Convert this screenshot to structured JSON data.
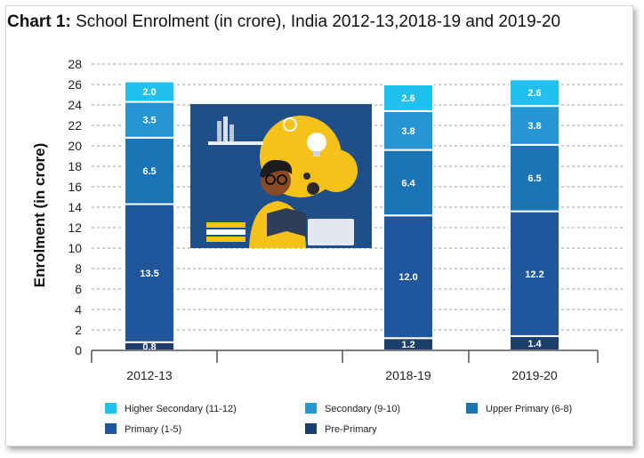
{
  "title": {
    "prefix": "Chart 1:",
    "text": " School Enrolment (in crore), India 2012-13,2018-19 and 2019-20"
  },
  "chart_data": {
    "type": "bar",
    "stacked": true,
    "title": "Chart 1: School Enrolment (in crore), India 2012-13,2018-19 and 2019-20",
    "ylabel": "Enrolment (in crore)",
    "xlabel": "",
    "ylim": [
      0,
      28
    ],
    "yticks": [
      0,
      2,
      4,
      6,
      8,
      10,
      12,
      14,
      16,
      18,
      20,
      22,
      24,
      26,
      28
    ],
    "grid": true,
    "legend_position": "bottom",
    "categories": [
      "2012-13",
      "2018-19",
      "2019-20"
    ],
    "series": [
      {
        "name": "Pre-Primary",
        "color": "#1d3f6e",
        "values": [
          0.8,
          1.2,
          1.4
        ],
        "labels": [
          "0.8",
          "1.2",
          "1.4"
        ]
      },
      {
        "name": "Primary (1-5)",
        "color": "#1f569c",
        "values": [
          13.5,
          12.0,
          12.2
        ],
        "labels": [
          "13.5",
          "12.0",
          "12.2"
        ]
      },
      {
        "name": "Upper Primary (6-8)",
        "color": "#1a74b6",
        "values": [
          6.5,
          6.4,
          6.5
        ],
        "labels": [
          "6.5",
          "6.4",
          "6.5"
        ]
      },
      {
        "name": "Secondary (9-10)",
        "color": "#2596d3",
        "values": [
          3.5,
          3.8,
          3.8
        ],
        "labels": [
          "3.5",
          "3.8",
          "3.8"
        ]
      },
      {
        "name": "Higher Secondary (11-12)",
        "color": "#21c0ee",
        "values": [
          2.0,
          2.6,
          2.6
        ],
        "labels": [
          "2.0",
          "2.6",
          "2.6"
        ]
      }
    ],
    "legend_order": [
      "Higher Secondary (11-12)",
      "Secondary (9-10)",
      "Upper Primary (6-8)",
      "Primary (1-5)",
      "Pre-Primary"
    ]
  }
}
